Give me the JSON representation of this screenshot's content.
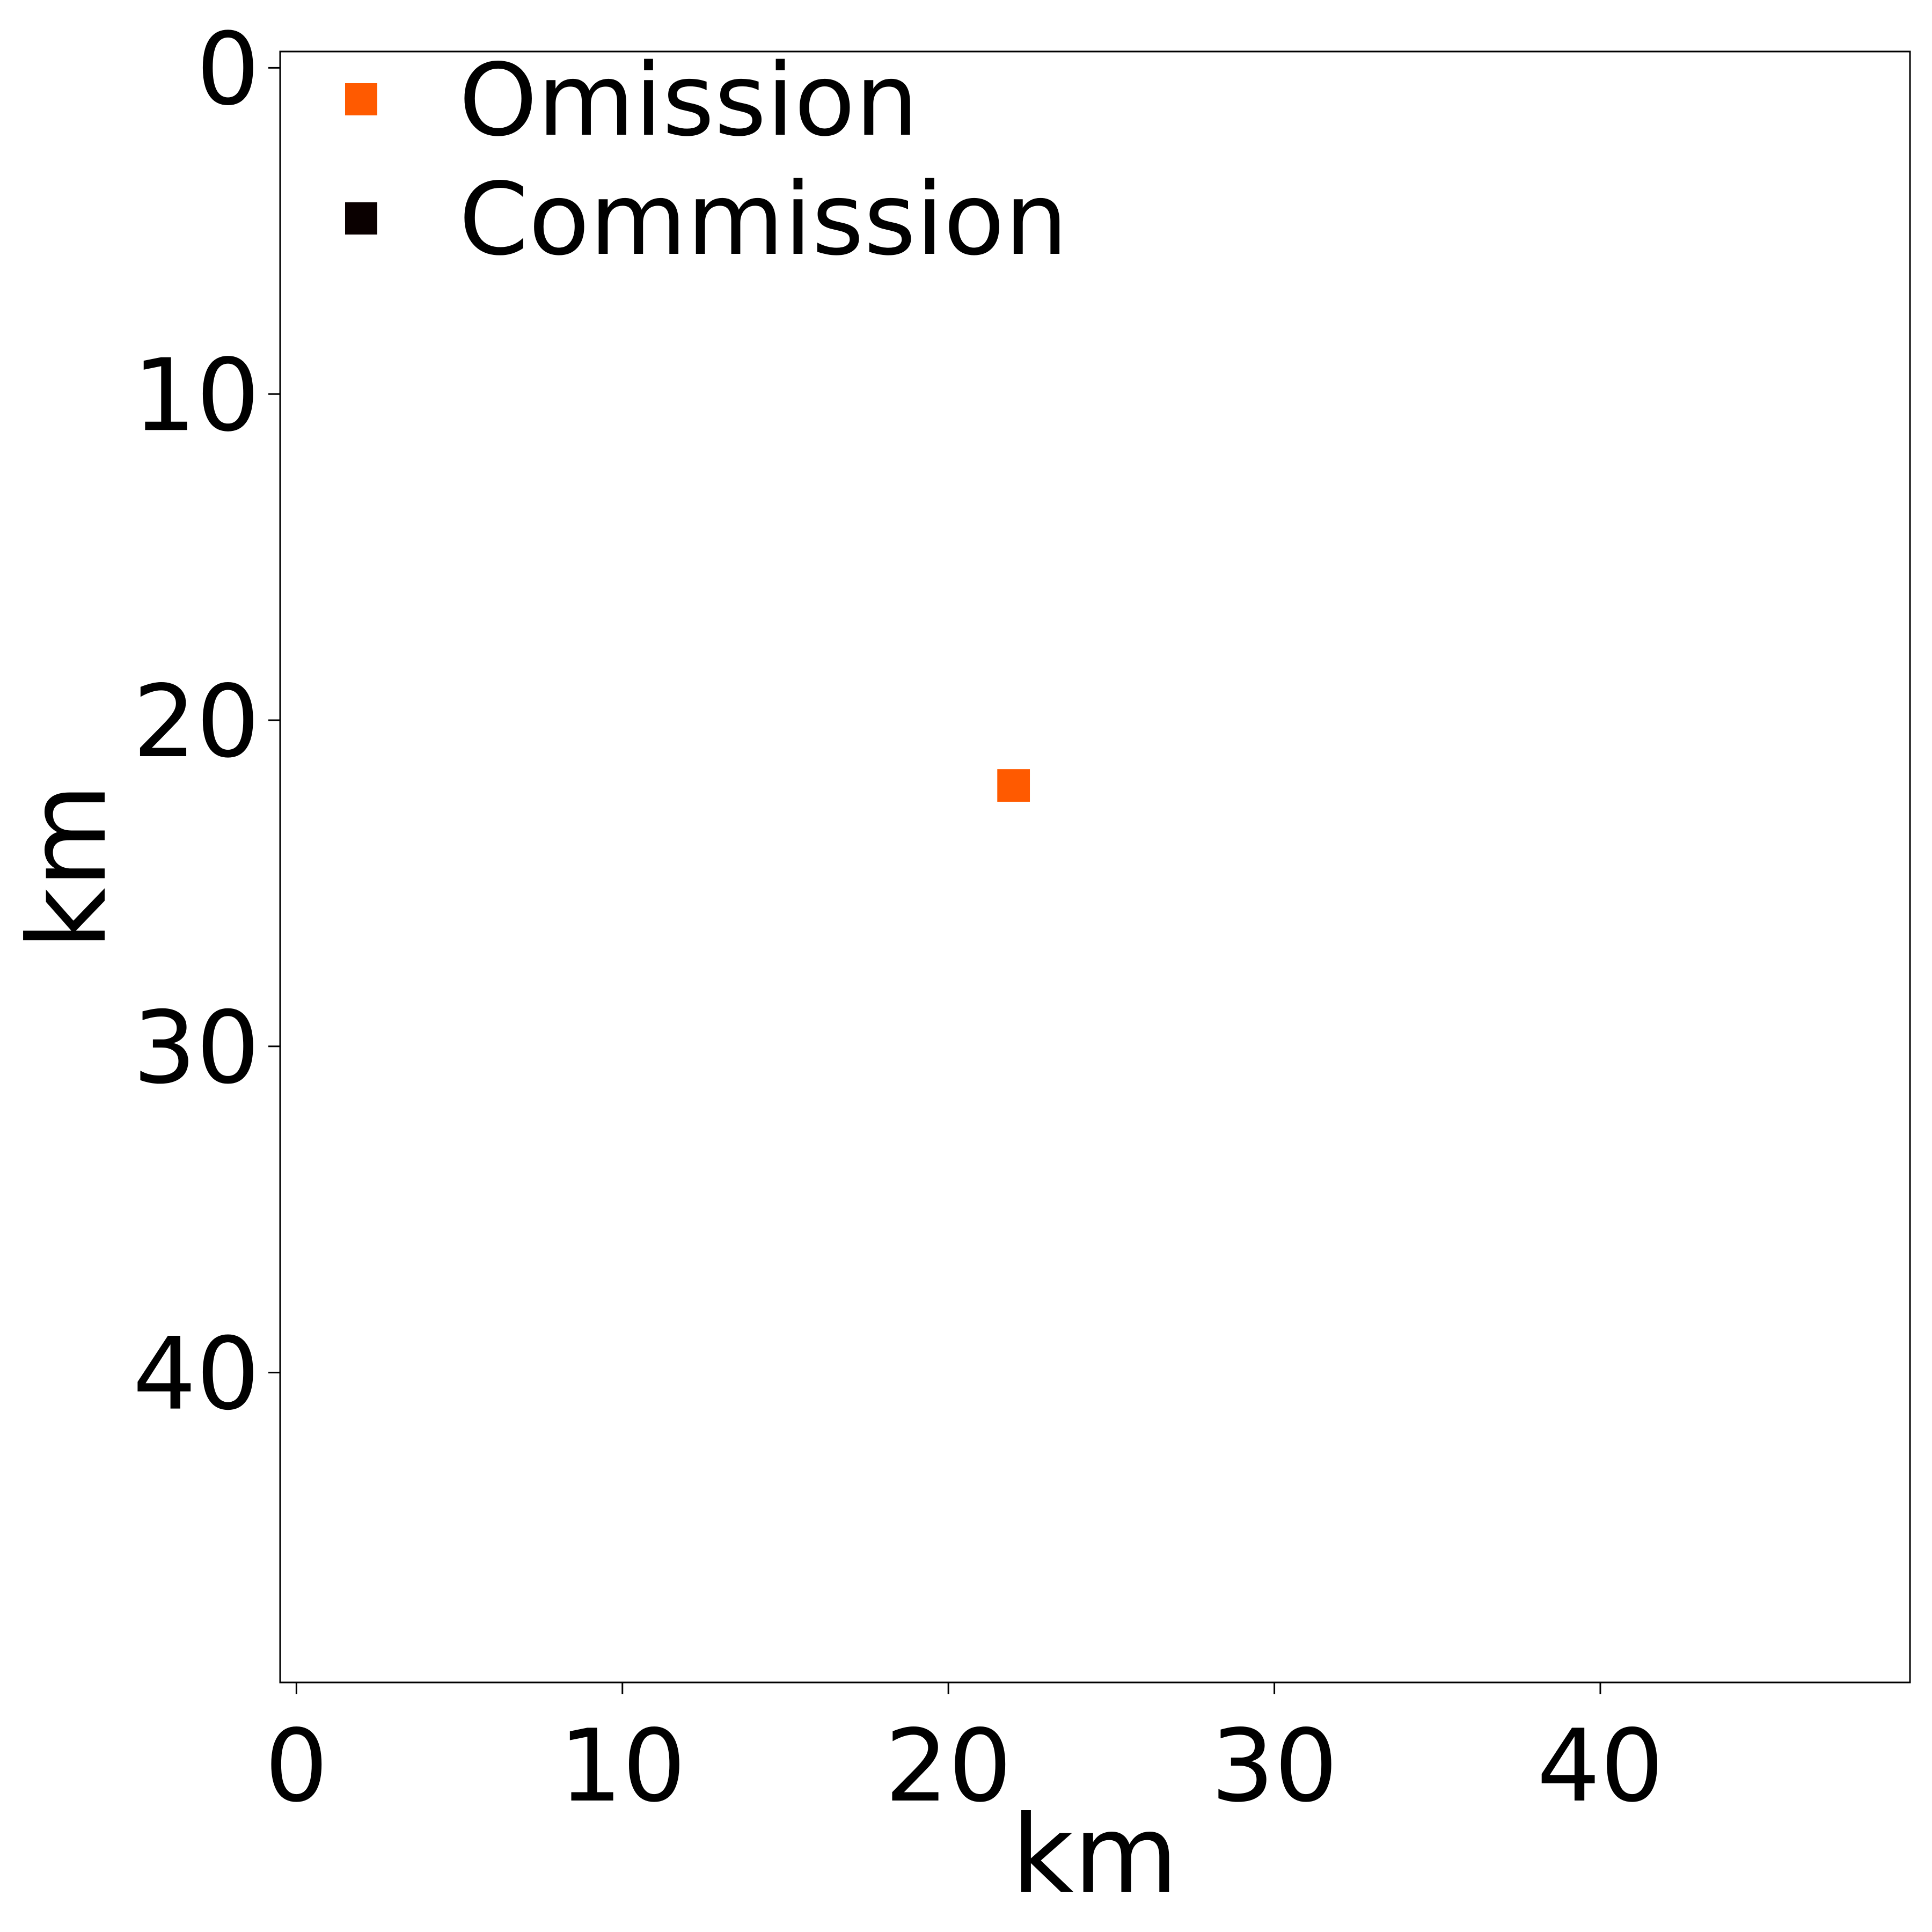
{
  "chart_data": {
    "type": "heatmap",
    "title": "",
    "xlabel": "km",
    "ylabel": "km",
    "xlim": [
      -0.5,
      49.5
    ],
    "ylim": [
      49.5,
      -0.5
    ],
    "y_inverted": true,
    "xticks": [
      0,
      10,
      20,
      30,
      40
    ],
    "yticks": [
      0,
      10,
      20,
      30,
      40
    ],
    "grid": false,
    "legend": {
      "placement": "top-left",
      "entries": [
        {
          "label": "Omission",
          "color": "#ff5a00",
          "marker": "square"
        },
        {
          "label": "Commission",
          "color": "#0a0000",
          "marker": "square"
        }
      ]
    },
    "cells": [
      {
        "x": 22,
        "y": 22,
        "class": "Omission",
        "color": "#ff5a00"
      }
    ]
  }
}
